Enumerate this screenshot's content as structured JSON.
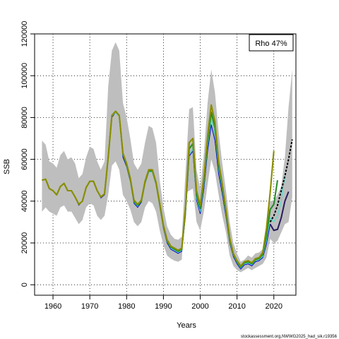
{
  "chart_data": {
    "type": "line",
    "xlabel": "Years",
    "ylabel": "SSB",
    "xlim": [
      1955,
      2026
    ],
    "ylim": [
      -5000,
      120000
    ],
    "x_ticks": [
      1960,
      1970,
      1980,
      1990,
      2000,
      2010,
      2020
    ],
    "y_ticks": [
      0,
      20000,
      40000,
      60000,
      80000,
      100000,
      120000
    ],
    "grid": true,
    "legend_text": "Rho 47%",
    "legend_position": "top-right",
    "footer": "stockassessment.org,NWWG2025_had_sik.r19356",
    "band": {
      "color": "#bebebe",
      "points": [
        [
          1957,
          69000,
          35000
        ],
        [
          1958,
          67000,
          37000
        ],
        [
          1959,
          59000,
          35000
        ],
        [
          1960,
          58000,
          34000
        ],
        [
          1961,
          56000,
          33000
        ],
        [
          1962,
          62000,
          37000
        ],
        [
          1963,
          64000,
          38000
        ],
        [
          1964,
          60000,
          35000
        ],
        [
          1965,
          61000,
          35000
        ],
        [
          1966,
          58000,
          32000
        ],
        [
          1967,
          51000,
          29000
        ],
        [
          1968,
          53000,
          31000
        ],
        [
          1969,
          61000,
          37000
        ],
        [
          1970,
          66000,
          39000
        ],
        [
          1971,
          65000,
          38000
        ],
        [
          1972,
          59000,
          33000
        ],
        [
          1973,
          55000,
          31000
        ],
        [
          1974,
          59000,
          33000
        ],
        [
          1975,
          95000,
          43000
        ],
        [
          1976,
          112000,
          57000
        ],
        [
          1977,
          116000,
          59000
        ],
        [
          1978,
          112000,
          55000
        ],
        [
          1979,
          87000,
          43000
        ],
        [
          1980,
          80000,
          40000
        ],
        [
          1981,
          70000,
          36000
        ],
        [
          1982,
          58000,
          30000
        ],
        [
          1983,
          55000,
          28000
        ],
        [
          1984,
          58000,
          30000
        ],
        [
          1985,
          68000,
          37000
        ],
        [
          1986,
          76000,
          40000
        ],
        [
          1987,
          75000,
          39000
        ],
        [
          1988,
          68000,
          35000
        ],
        [
          1989,
          50000,
          26000
        ],
        [
          1990,
          37000,
          19000
        ],
        [
          1991,
          28000,
          14000
        ],
        [
          1992,
          24000,
          12500
        ],
        [
          1993,
          22000,
          11500
        ],
        [
          1994,
          21500,
          11000
        ],
        [
          1995,
          23000,
          12000
        ],
        [
          1996,
          54000,
          44000
        ],
        [
          1997,
          84000,
          45000
        ],
        [
          1998,
          85000,
          46000
        ],
        [
          1999,
          55000,
          30000
        ],
        [
          2000,
          46000,
          26000
        ],
        [
          2001,
          63000,
          35000
        ],
        [
          2002,
          87000,
          48000
        ],
        [
          2003,
          103000,
          60000
        ],
        [
          2004,
          92000,
          54000
        ],
        [
          2005,
          73000,
          43000
        ],
        [
          2006,
          58000,
          33000
        ],
        [
          2007,
          45000,
          25000
        ],
        [
          2008,
          30000,
          14000
        ],
        [
          2009,
          20000,
          9000
        ],
        [
          2010,
          15000,
          7000
        ],
        [
          2011,
          11000,
          6000
        ],
        [
          2012,
          12000,
          7000
        ],
        [
          2013,
          14000,
          8000
        ],
        [
          2014,
          13000,
          7000
        ],
        [
          2015,
          15000,
          8000
        ],
        [
          2016,
          15500,
          9000
        ],
        [
          2017,
          17000,
          10000
        ],
        [
          2018,
          24000,
          13000
        ],
        [
          2019,
          40000,
          22000
        ],
        [
          2020,
          40000,
          20000
        ],
        [
          2021,
          43000,
          21000
        ],
        [
          2022,
          47000,
          25000
        ],
        [
          2023,
          61000,
          29000
        ],
        [
          2024,
          85000,
          30000
        ],
        [
          2025,
          103000,
          42000
        ]
      ]
    },
    "series": [
      {
        "color": "#0000cd",
        "width": 1,
        "x": [
          1957,
          1958,
          1959,
          1960,
          1961,
          1962,
          1963,
          1964,
          1965,
          1966,
          1967,
          1968,
          1969,
          1970,
          1971,
          1972,
          1973,
          1974,
          1975,
          1976,
          1977,
          1978,
          1979,
          1980,
          1981,
          1982,
          1983,
          1984,
          1985,
          1986,
          1987,
          1988,
          1989,
          1990,
          1991,
          1992,
          1993,
          1994,
          1995,
          1996,
          1997,
          1998,
          1999,
          2000,
          2001,
          2002,
          2003,
          2004,
          2005,
          2006,
          2007,
          2008,
          2009,
          2010,
          2011,
          2012,
          2013,
          2014,
          2015,
          2016,
          2017,
          2018,
          2019,
          2020,
          2021,
          2022,
          2023,
          2024
        ],
        "values": [
          50000,
          50500,
          46000,
          45000,
          43000,
          47000,
          48500,
          45000,
          45000,
          42000,
          38000,
          40000,
          46500,
          49500,
          49500,
          45000,
          41500,
          43000,
          60000,
          80000,
          82500,
          80500,
          61000,
          56500,
          49500,
          39000,
          37000,
          39500,
          48500,
          54000,
          54000,
          48000,
          37500,
          27000,
          20000,
          17000,
          16000,
          15000,
          16000,
          33000,
          61500,
          64000,
          40500,
          34000,
          46000,
          64000,
          76500,
          69000,
          53000,
          43500,
          32500,
          20000,
          13500,
          10000,
          7500,
          9500,
          10000,
          9000,
          11000,
          11500,
          13000,
          19500,
          29000,
          26000,
          26500,
          32000,
          40000,
          44500
        ]
      },
      {
        "color": "#40e0d0",
        "width": 1,
        "x": [
          1957,
          1958,
          1959,
          1960,
          1961,
          1962,
          1963,
          1964,
          1965,
          1966,
          1967,
          1968,
          1969,
          1970,
          1971,
          1972,
          1973,
          1974,
          1975,
          1976,
          1977,
          1978,
          1979,
          1980,
          1981,
          1982,
          1983,
          1984,
          1985,
          1986,
          1987,
          1988,
          1989,
          1990,
          1991,
          1992,
          1993,
          1994,
          1995,
          1996,
          1997,
          1998,
          1999,
          2000,
          2001,
          2002,
          2003,
          2004,
          2005,
          2006,
          2007,
          2008,
          2009,
          2010,
          2011,
          2012,
          2013,
          2014,
          2015,
          2016,
          2017,
          2018,
          2019,
          2020,
          2021,
          2022,
          2023
        ],
        "values": [
          50000,
          50500,
          46000,
          45000,
          43000,
          47000,
          48500,
          45000,
          45000,
          42000,
          38500,
          40000,
          46500,
          49500,
          49500,
          45000,
          42000,
          43500,
          60500,
          80500,
          82500,
          80500,
          62000,
          57000,
          50000,
          39500,
          37500,
          40000,
          49000,
          54000,
          54000,
          48000,
          38000,
          27500,
          20500,
          17500,
          16500,
          15500,
          16500,
          34000,
          62500,
          65000,
          41500,
          35000,
          47500,
          66000,
          79500,
          72000,
          55000,
          45000,
          33500,
          20500,
          14000,
          10500,
          8000,
          10000,
          10500,
          9500,
          11500,
          12000,
          13500,
          21000,
          32000,
          30000,
          33000,
          40000,
          52000
        ]
      },
      {
        "color": "#228b22",
        "width": 2,
        "x": [
          1957,
          1958,
          1959,
          1960,
          1961,
          1962,
          1963,
          1964,
          1965,
          1966,
          1967,
          1968,
          1969,
          1970,
          1971,
          1972,
          1973,
          1974,
          1975,
          1976,
          1977,
          1978,
          1979,
          1980,
          1981,
          1982,
          1983,
          1984,
          1985,
          1986,
          1987,
          1988,
          1989,
          1990,
          1991,
          1992,
          1993,
          1994,
          1995,
          1996,
          1997,
          1998,
          1999,
          2000,
          2001,
          2002,
          2003,
          2004,
          2005,
          2006,
          2007,
          2008,
          2009,
          2010,
          2011,
          2012,
          2013,
          2014,
          2015,
          2016,
          2017,
          2018,
          2019,
          2020,
          2021
        ],
        "values": [
          50000,
          50500,
          46000,
          45000,
          43000,
          47000,
          48500,
          45000,
          45000,
          42000,
          38500,
          40000,
          46500,
          49500,
          49500,
          45000,
          42000,
          43500,
          61000,
          81000,
          83000,
          81000,
          62500,
          57500,
          50500,
          40000,
          38000,
          40000,
          49000,
          54500,
          54500,
          48500,
          38500,
          28000,
          21000,
          18000,
          17000,
          16000,
          17000,
          35500,
          65000,
          67500,
          43000,
          36500,
          49500,
          68500,
          82500,
          75000,
          57000,
          46500,
          34500,
          21500,
          14500,
          11000,
          8500,
          10500,
          11000,
          10000,
          12000,
          12500,
          14500,
          23500,
          36000,
          38500,
          50000
        ]
      },
      {
        "color": "#9acd32",
        "width": 2,
        "x": [
          1957,
          1958,
          1959,
          1960,
          1961,
          1962,
          1963,
          1964,
          1965,
          1966,
          1967,
          1968,
          1969,
          1970,
          1971,
          1972,
          1973,
          1974,
          1975,
          1976,
          1977,
          1978,
          1979,
          1980,
          1981,
          1982,
          1983,
          1984,
          1985,
          1986,
          1987,
          1988,
          1989,
          1990,
          1991,
          1992,
          1993,
          1994,
          1995,
          1996,
          1997,
          1998,
          1999,
          2000,
          2001,
          2002,
          2003,
          2004,
          2005,
          2006,
          2007,
          2008,
          2009,
          2010,
          2011,
          2012,
          2013,
          2014,
          2015,
          2016,
          2017,
          2018,
          2019,
          2020
        ],
        "values": [
          50000,
          50500,
          46000,
          45000,
          43000,
          47000,
          48500,
          45000,
          45000,
          42000,
          38500,
          40000,
          46500,
          49500,
          49500,
          45000,
          42000,
          43500,
          61000,
          81000,
          83000,
          81000,
          63000,
          58000,
          51000,
          40500,
          38500,
          40500,
          49500,
          55000,
          55000,
          49000,
          39000,
          28500,
          21500,
          18500,
          17500,
          16500,
          17500,
          37000,
          68000,
          70000,
          45000,
          38000,
          51500,
          71000,
          86000,
          78000,
          59000,
          48000,
          36000,
          22500,
          15000,
          11500,
          9000,
          11000,
          11500,
          10500,
          12500,
          13000,
          15500,
          27000,
          44000,
          64000
        ]
      },
      {
        "color": "#8b8b00",
        "width": 2,
        "x": [
          1957,
          1958,
          1959,
          1960,
          1961,
          1962,
          1963,
          1964,
          1965,
          1966,
          1967,
          1968,
          1969,
          1970,
          1971,
          1972,
          1973,
          1974,
          1975,
          1976,
          1977,
          1978,
          1979,
          1980,
          1981,
          1982,
          1983,
          1984,
          1985,
          1986,
          1987,
          1988,
          1989,
          1990,
          1991,
          1992,
          1993,
          1994,
          1995,
          1996,
          1997,
          1998,
          1999,
          2000,
          2001,
          2002,
          2003,
          2004,
          2005,
          2006,
          2007,
          2008,
          2009,
          2010,
          2011,
          2012,
          2013,
          2014,
          2015,
          2016,
          2017,
          2018,
          2019,
          2020
        ],
        "values": [
          50000,
          50500,
          46000,
          45000,
          43000,
          47000,
          48500,
          45000,
          45000,
          42000,
          38500,
          40000,
          46500,
          49500,
          49500,
          45000,
          42000,
          43500,
          61000,
          81000,
          83000,
          81000,
          63000,
          58000,
          51000,
          40500,
          38500,
          40500,
          49500,
          55000,
          55000,
          49000,
          39000,
          28500,
          21500,
          18500,
          17500,
          16500,
          17500,
          37000,
          68000,
          70000,
          45000,
          38000,
          51500,
          71000,
          86000,
          78000,
          59000,
          48000,
          36000,
          22500,
          15000,
          11500,
          9000,
          11000,
          11500,
          10500,
          12500,
          13000,
          15500,
          27000,
          44000,
          64000
        ]
      },
      {
        "color": "#2a1a5e",
        "width": 2,
        "x": [
          2019,
          2020,
          2021,
          2022,
          2023,
          2024
        ],
        "values": [
          29000,
          26000,
          26500,
          32000,
          40000,
          44500
        ]
      },
      {
        "color": "#000000",
        "width": 2,
        "dashed": true,
        "x": [
          2019,
          2020,
          2021,
          2022,
          2023,
          2024,
          2025
        ],
        "values": [
          30000,
          33000,
          38000,
          45000,
          52000,
          60000,
          69500
        ]
      }
    ]
  }
}
